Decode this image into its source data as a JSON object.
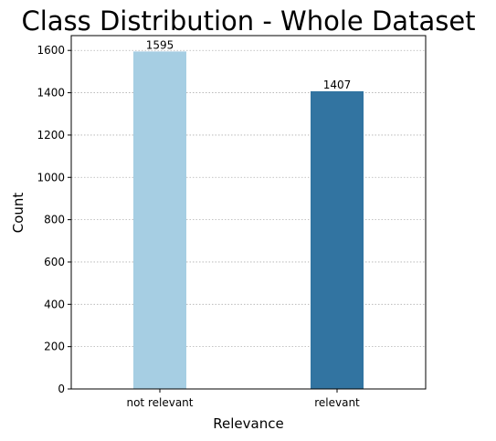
{
  "chart_data": {
    "type": "bar",
    "title": "Class Distribution - Whole Dataset",
    "xlabel": "Relevance",
    "ylabel": "Count",
    "categories": [
      "not relevant",
      "relevant"
    ],
    "values": [
      1595,
      1407
    ],
    "data_labels": [
      "1595",
      "1407"
    ],
    "bar_colors": [
      "#a6cee3",
      "#3274a1"
    ],
    "ylim": [
      0,
      1670
    ],
    "yticks": [
      0,
      200,
      400,
      600,
      800,
      1000,
      1200,
      1400,
      1600
    ],
    "ytick_labels": [
      "0",
      "200",
      "400",
      "600",
      "800",
      "1000",
      "1200",
      "1400",
      "1600"
    ],
    "grid": "y-axis dotted",
    "legend": "none"
  }
}
